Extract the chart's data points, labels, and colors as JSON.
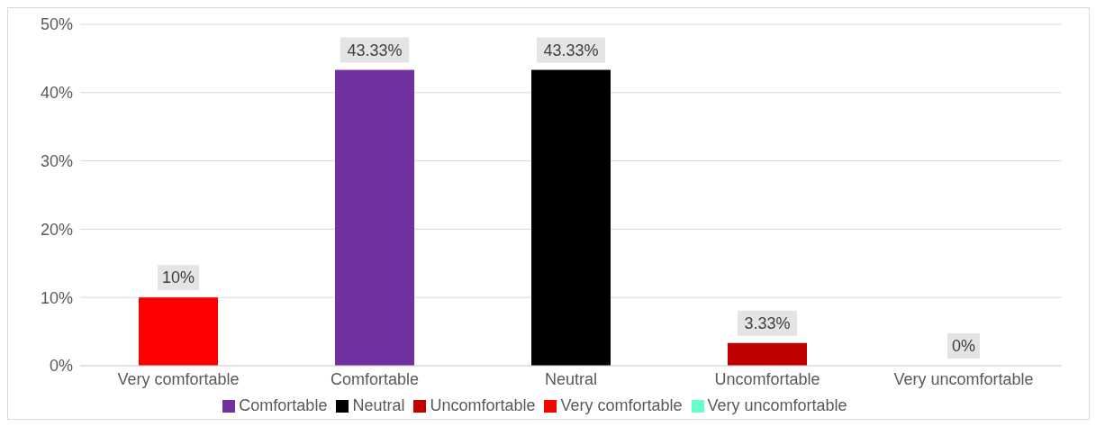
{
  "chart_data": {
    "type": "bar",
    "categories": [
      "Very comfortable",
      "Comfortable",
      "Neutral",
      "Uncomfortable",
      "Very uncomfortable"
    ],
    "stacked": true,
    "series": [
      {
        "name": "Very comfortable",
        "color": "#ff0000",
        "values": [
          10,
          null,
          null,
          null,
          null
        ],
        "value_labels": [
          "10%",
          null,
          null,
          null,
          null
        ]
      },
      {
        "name": "Comfortable",
        "color": "#7030a0",
        "values": [
          null,
          43.33,
          null,
          null,
          null
        ],
        "value_labels": [
          null,
          "43.33%",
          null,
          null,
          null
        ]
      },
      {
        "name": "Neutral",
        "color": "#000000",
        "values": [
          null,
          null,
          43.33,
          null,
          null
        ],
        "value_labels": [
          null,
          null,
          "43.33%",
          null,
          null
        ]
      },
      {
        "name": "Uncomfortable",
        "color": "#c00000",
        "values": [
          null,
          null,
          null,
          3.33,
          null
        ],
        "value_labels": [
          null,
          null,
          null,
          "3.33%",
          null
        ]
      },
      {
        "name": "Very uncomfortable",
        "color": "#66ffcc",
        "values": [
          null,
          null,
          null,
          null,
          0
        ],
        "value_labels": [
          null,
          null,
          null,
          null,
          "0%"
        ]
      }
    ],
    "ylim": [
      0,
      50
    ],
    "yticks": [
      {
        "value": 0,
        "label": "0%"
      },
      {
        "value": 10,
        "label": "10%"
      },
      {
        "value": 20,
        "label": "20%"
      },
      {
        "value": 30,
        "label": "30%"
      },
      {
        "value": 40,
        "label": "40%"
      },
      {
        "value": 50,
        "label": "50%"
      }
    ],
    "grid": "y",
    "legend": "bottom"
  }
}
